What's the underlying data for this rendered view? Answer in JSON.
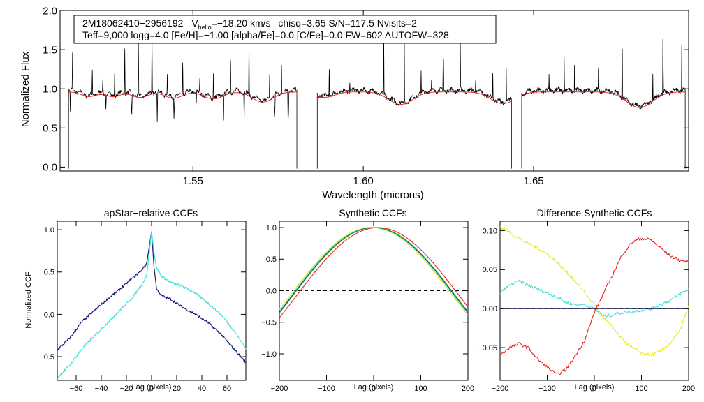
{
  "chart_data": [
    {
      "type": "line",
      "id": "spectrum",
      "xlabel": "Wavelength (microns)",
      "ylabel": "Normalized Flux",
      "xlim": [
        1.511,
        1.6955
      ],
      "ylim": [
        -0.05,
        2.0
      ],
      "xticks": [
        {
          "value": 1.55,
          "label": "1.55"
        },
        {
          "value": 1.6,
          "label": "1.60"
        },
        {
          "value": 1.65,
          "label": "1.65"
        }
      ],
      "yticks": [
        {
          "value": 0.0,
          "label": "0.0"
        },
        {
          "value": 0.5,
          "label": "0.5"
        },
        {
          "value": 1.0,
          "label": "1.0"
        },
        {
          "value": 1.5,
          "label": "1.5"
        },
        {
          "value": 2.0,
          "label": "2.0"
        }
      ],
      "annotation": {
        "object_id": "2M18062410−2956192",
        "vhelio_label": "V",
        "vhelio_sub": "helio",
        "vhelio_value": "=−18.20 km/s",
        "stats": "chisq=3.65  S/N=117.5  Nvisits=2",
        "line2": "Teff=9,000 logg=4.0 [Fe/H]=−1.00 [alpha/Fe]=0.0 [C/Fe]=0.0 FW=602 AUTOFW=328"
      },
      "chips": [
        [
          1.5135,
          1.5805
        ],
        [
          1.5865,
          1.6435
        ],
        [
          1.6465,
          1.6945
        ]
      ],
      "continuum": 0.98,
      "broad_absorptions": [
        {
          "center": 1.5195,
          "depth": 0.06,
          "width": 0.0022
        },
        {
          "center": 1.5265,
          "depth": 0.06,
          "width": 0.0022
        },
        {
          "center": 1.5345,
          "depth": 0.07,
          "width": 0.0024
        },
        {
          "center": 1.5443,
          "depth": 0.08,
          "width": 0.0026
        },
        {
          "center": 1.556,
          "depth": 0.09,
          "width": 0.0028
        },
        {
          "center": 1.5705,
          "depth": 0.13,
          "width": 0.003
        },
        {
          "center": 1.5885,
          "depth": 0.07,
          "width": 0.003
        },
        {
          "center": 1.611,
          "depth": 0.16,
          "width": 0.0035
        },
        {
          "center": 1.641,
          "depth": 0.15,
          "width": 0.0035
        },
        {
          "center": 1.6811,
          "depth": 0.2,
          "width": 0.0038
        }
      ],
      "emission_spikes": [
        1.5147,
        1.5205,
        1.5235,
        1.527,
        1.53,
        1.534,
        1.538,
        1.5425,
        1.547,
        1.552,
        1.556,
        1.561,
        1.5665,
        1.5725,
        1.576,
        1.59,
        1.596,
        1.606,
        1.612,
        1.617,
        1.62,
        1.6235,
        1.6285,
        1.633,
        1.638,
        1.642,
        1.6545,
        1.659,
        1.662,
        1.669,
        1.676,
        1.685,
        1.688,
        1.6935
      ],
      "absorption_spikes": [
        1.514,
        1.5245,
        1.532,
        1.5395,
        1.5445,
        1.551,
        1.559,
        1.565,
        1.574,
        1.578
      ],
      "series": [
        {
          "name": "observed",
          "color": "#000000"
        },
        {
          "name": "model",
          "color": "#e8201e"
        }
      ]
    },
    {
      "type": "line",
      "id": "apstar_ccf",
      "title": "apStar−relative CCFs",
      "xlabel": "Lag (pixels)",
      "ylabel": "Normalized CCF",
      "xlim": [
        -75,
        75
      ],
      "ylim": [
        -0.78,
        1.1
      ],
      "xticks": [
        {
          "value": -60,
          "label": "−60"
        },
        {
          "value": -40,
          "label": "−40"
        },
        {
          "value": -20,
          "label": "−20"
        },
        {
          "value": 0,
          "label": "0"
        },
        {
          "value": 20,
          "label": "20"
        },
        {
          "value": 40,
          "label": "40"
        },
        {
          "value": 60,
          "label": "60"
        }
      ],
      "yticks": [
        {
          "value": -0.5,
          "label": "−0.5"
        },
        {
          "value": 0.0,
          "label": "0.0"
        },
        {
          "value": 0.5,
          "label": "0.5"
        },
        {
          "value": 1.0,
          "label": "1.0"
        }
      ],
      "series": [
        {
          "name": "visit 1",
          "color": "#18187a",
          "x": [
            -75,
            -65,
            -55,
            -45,
            -35,
            -25,
            -15,
            -8,
            -4,
            -2,
            0,
            2,
            4,
            8,
            15,
            25,
            35,
            45,
            55,
            65,
            75
          ],
          "y": [
            -0.42,
            -0.28,
            -0.08,
            0.05,
            0.18,
            0.3,
            0.43,
            0.52,
            0.6,
            0.78,
            0.98,
            0.55,
            0.3,
            0.22,
            0.18,
            0.08,
            0.0,
            -0.1,
            -0.23,
            -0.4,
            -0.57
          ]
        },
        {
          "name": "visit 2",
          "color": "#40e0d0",
          "x": [
            -75,
            -65,
            -55,
            -45,
            -35,
            -25,
            -15,
            -8,
            -4,
            -2,
            0,
            2,
            4,
            8,
            15,
            25,
            35,
            45,
            55,
            65,
            75
          ],
          "y": [
            -0.75,
            -0.6,
            -0.4,
            -0.25,
            -0.1,
            0.05,
            0.2,
            0.35,
            0.45,
            0.7,
            0.98,
            0.72,
            0.55,
            0.45,
            0.38,
            0.33,
            0.25,
            0.13,
            0.0,
            -0.18,
            -0.4
          ]
        }
      ]
    },
    {
      "type": "line",
      "id": "synthetic_ccf",
      "title": "Synthetic CCFs",
      "xlabel": "Lag (pixels)",
      "xlim": [
        -200,
        200
      ],
      "ylim": [
        -1.42,
        1.1
      ],
      "xticks": [
        {
          "value": -200,
          "label": "−200"
        },
        {
          "value": -100,
          "label": "−100"
        },
        {
          "value": 0,
          "label": "0"
        },
        {
          "value": 100,
          "label": "100"
        },
        {
          "value": 200,
          "label": "200"
        }
      ],
      "yticks": [
        {
          "value": -1.0,
          "label": "−1.0"
        },
        {
          "value": -0.5,
          "label": "−0.5"
        },
        {
          "value": 0.0,
          "label": "0.0"
        },
        {
          "value": 0.5,
          "label": "0.5"
        },
        {
          "value": 1.0,
          "label": "1.0"
        }
      ],
      "reference_line": {
        "y": 0.0,
        "style": "dashed"
      },
      "series": [
        {
          "name": "yellow",
          "color": "#e8e820",
          "shift": -5
        },
        {
          "name": "cyan",
          "color": "#40e0d0",
          "shift": -2
        },
        {
          "name": "blue",
          "color": "#18187a",
          "shift": 0
        },
        {
          "name": "green",
          "color": "#20a020",
          "shift": 1
        },
        {
          "name": "red",
          "color": "#e8201e",
          "shift": 9
        }
      ]
    },
    {
      "type": "line",
      "id": "difference_ccf",
      "title": "Difference Synthetic CCFs",
      "xlabel": "Lag (pixels)",
      "xlim": [
        -200,
        200
      ],
      "ylim": [
        -0.092,
        0.112
      ],
      "xticks": [
        {
          "value": -200,
          "label": "−200"
        },
        {
          "value": -100,
          "label": "−100"
        },
        {
          "value": 0,
          "label": "0"
        },
        {
          "value": 100,
          "label": "100"
        },
        {
          "value": 200,
          "label": "200"
        }
      ],
      "yticks": [
        {
          "value": -0.05,
          "label": "−0.05"
        },
        {
          "value": 0.0,
          "label": "0.00"
        },
        {
          "value": 0.05,
          "label": "0.05"
        },
        {
          "value": 0.1,
          "label": "0.10"
        }
      ],
      "reference_line": {
        "y": 0.0,
        "style": "dashed"
      },
      "series": [
        {
          "name": "yellow",
          "color": "#e8e820",
          "x": [
            -200,
            -180,
            -160,
            -140,
            -120,
            -100,
            -80,
            -60,
            -40,
            -20,
            0,
            20,
            40,
            60,
            80,
            100,
            120,
            140,
            160,
            180,
            200
          ],
          "y": [
            0.105,
            0.098,
            0.09,
            0.083,
            0.078,
            0.07,
            0.06,
            0.047,
            0.035,
            0.02,
            0.005,
            -0.012,
            -0.025,
            -0.04,
            -0.05,
            -0.057,
            -0.06,
            -0.055,
            -0.045,
            -0.03,
            0.002
          ]
        },
        {
          "name": "cyan",
          "color": "#40e0d0",
          "x": [
            -200,
            -180,
            -160,
            -140,
            -120,
            -100,
            -80,
            -60,
            -40,
            -20,
            0,
            20,
            40,
            60,
            80,
            100,
            120,
            140,
            160,
            180,
            200
          ],
          "y": [
            0.02,
            0.03,
            0.035,
            0.03,
            0.025,
            0.02,
            0.015,
            0.008,
            0.005,
            0.005,
            0.0,
            -0.01,
            -0.008,
            -0.005,
            -0.004,
            -0.002,
            0.0,
            0.005,
            0.01,
            0.018,
            0.025
          ]
        },
        {
          "name": "blue",
          "color": "#18187a",
          "x": [
            -200,
            200
          ],
          "y": [
            0.0,
            0.0
          ]
        },
        {
          "name": "red",
          "color": "#e8201e",
          "x": [
            -200,
            -180,
            -160,
            -140,
            -120,
            -100,
            -80,
            -60,
            -40,
            -20,
            0,
            20,
            40,
            60,
            80,
            100,
            120,
            140,
            160,
            180,
            200
          ],
          "y": [
            -0.06,
            -0.05,
            -0.045,
            -0.05,
            -0.065,
            -0.075,
            -0.085,
            -0.078,
            -0.06,
            -0.04,
            -0.005,
            0.02,
            0.045,
            0.07,
            0.085,
            0.09,
            0.088,
            0.078,
            0.068,
            0.062,
            0.06
          ]
        }
      ]
    }
  ]
}
